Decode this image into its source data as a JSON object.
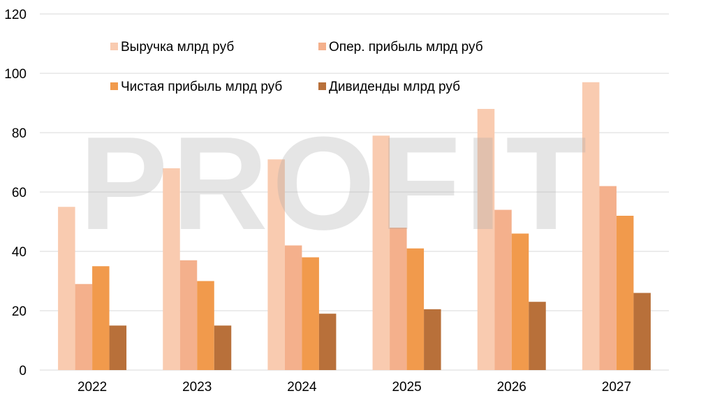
{
  "chart_data": {
    "type": "bar",
    "categories": [
      "2022",
      "2023",
      "2024",
      "2025",
      "2026",
      "2027"
    ],
    "series": [
      {
        "name": "Выручка млрд руб",
        "color": "#f9cbb0",
        "values": [
          55,
          68,
          71,
          79,
          88,
          97
        ]
      },
      {
        "name": "Опер. прибыль млрд руб",
        "color": "#f4b08c",
        "values": [
          29,
          37,
          42,
          48,
          54,
          62
        ]
      },
      {
        "name": "Чистая прибыль млрд руб",
        "color": "#f19a4c",
        "values": [
          35,
          30,
          38,
          41,
          46,
          52
        ]
      },
      {
        "name": "Дивиденды млрд руб",
        "color": "#b8703a",
        "values": [
          15,
          15,
          19,
          20.5,
          23,
          26
        ]
      }
    ],
    "yticks": [
      "0",
      "20",
      "40",
      "60",
      "80",
      "100",
      "120"
    ],
    "ylim": [
      0,
      120
    ],
    "grid": true,
    "legend_position": "top, inside plot, 2 columns",
    "watermark": "PROFIT"
  }
}
